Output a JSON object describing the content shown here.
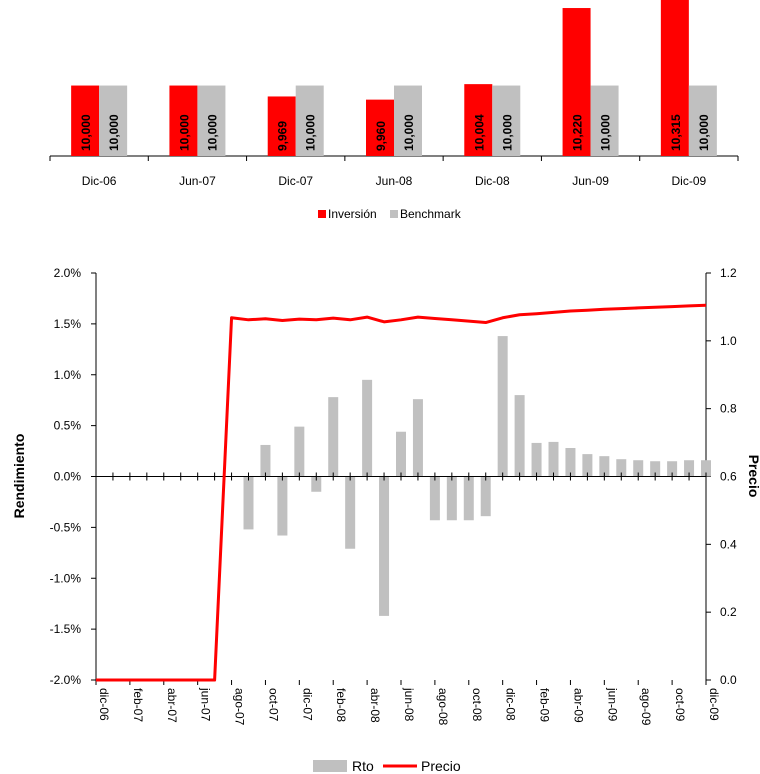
{
  "chart_data": [
    {
      "type": "bar",
      "categories": [
        "Dic-06",
        "Jun-07",
        "Dic-07",
        "Jun-08",
        "Dic-08",
        "Jun-09",
        "Dic-09"
      ],
      "series": [
        {
          "name": "Inversión",
          "color": "#ff0000",
          "values": [
            10000,
            10000,
            9969,
            9960,
            10004,
            10220,
            10315
          ],
          "labels": [
            "10,000",
            "10,000",
            "9,969",
            "9,960",
            "10,004",
            "10,220",
            "10,315"
          ]
        },
        {
          "name": "Benchmark",
          "color": "#c0c0c0",
          "values": [
            10000,
            10000,
            10000,
            10000,
            10000,
            10000,
            10000
          ],
          "labels": [
            "10,000",
            "10,000",
            "10,000",
            "10,000",
            "10,000",
            "10,000",
            "10,000"
          ]
        }
      ],
      "legend": "bottom",
      "grid": false
    },
    {
      "type": "bar",
      "ylabel": "Rendimiento",
      "y2label": "Precio",
      "ylim": [
        -0.02,
        0.02
      ],
      "y2lim": [
        0,
        1.2
      ],
      "yticks": [
        "2.0%",
        "1.5%",
        "1.0%",
        "0.5%",
        "0.0%",
        "-0.5%",
        "-1.0%",
        "-1.5%",
        "-2.0%"
      ],
      "y2ticks": [
        "1.2",
        "1.0",
        "0.8",
        "0.6",
        "0.4",
        "0.2",
        "0.0"
      ],
      "xticks": [
        "dic-06",
        "feb-07",
        "abr-07",
        "jun-07",
        "ago-07",
        "oct-07",
        "dic-07",
        "feb-08",
        "abr-08",
        "jun-08",
        "ago-08",
        "oct-08",
        "dic-08",
        "feb-09",
        "abr-09",
        "jun-09",
        "ago-09",
        "oct-09",
        "dic-09"
      ],
      "bar_series": {
        "name": "Rto",
        "color": "#c0c0c0",
        "months": [
          "sep-07",
          "oct-07",
          "nov-07",
          "dic-07",
          "ene-08",
          "feb-08",
          "mar-08",
          "abr-08",
          "may-08",
          "jun-08",
          "jul-08",
          "ago-08",
          "sep-08",
          "oct-08",
          "nov-08",
          "dic-08",
          "ene-09",
          "feb-09",
          "mar-09",
          "abr-09",
          "may-09",
          "jun-09",
          "jul-09",
          "ago-09",
          "sep-09",
          "oct-09",
          "nov-09",
          "dic-09"
        ],
        "values": [
          -0.0052,
          0.0031,
          -0.0058,
          0.0049,
          -0.0015,
          0.0078,
          -0.0071,
          0.0095,
          -0.0137,
          0.0044,
          0.0076,
          -0.0043,
          -0.0043,
          -0.0043,
          -0.0039,
          0.0138,
          0.008,
          0.0033,
          0.0034,
          0.0028,
          0.0022,
          0.002,
          0.0017,
          0.0016,
          0.0015,
          0.0015,
          0.0016,
          0.0016
        ]
      },
      "line_series": {
        "name": "Precio",
        "color": "#ff0000",
        "months": [
          "dic-06",
          "ene-07",
          "feb-07",
          "mar-07",
          "abr-07",
          "may-07",
          "jun-07",
          "jul-07",
          "ago-07",
          "sep-07",
          "oct-07",
          "nov-07",
          "dic-07",
          "ene-08",
          "feb-08",
          "mar-08",
          "abr-08",
          "may-08",
          "jun-08",
          "jul-08",
          "ago-08",
          "sep-08",
          "oct-08",
          "nov-08",
          "dic-08",
          "ene-09",
          "feb-09",
          "mar-09",
          "abr-09",
          "may-09",
          "jun-09",
          "jul-09",
          "ago-09",
          "sep-09",
          "oct-09",
          "nov-09",
          "dic-09"
        ],
        "values": [
          0,
          0,
          0,
          0,
          0,
          0,
          0,
          0,
          1.068,
          1.062,
          1.065,
          1.06,
          1.064,
          1.062,
          1.067,
          1.062,
          1.07,
          1.056,
          1.062,
          1.07,
          1.066,
          1.062,
          1.058,
          1.054,
          1.068,
          1.077,
          1.08,
          1.084,
          1.088,
          1.09,
          1.093,
          1.095,
          1.097,
          1.099,
          1.101,
          1.103,
          1.105
        ]
      },
      "legend": "bottom",
      "grid": false
    }
  ]
}
